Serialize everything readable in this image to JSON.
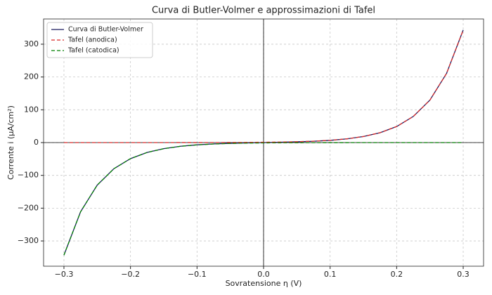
{
  "chart_data": {
    "type": "line",
    "title": "Curva di Butler-Volmer e approssimazioni di Tafel",
    "x_label": "Sovratensione η (V)",
    "y_label": "Corrente i (μA/cm²)",
    "x": [
      -0.3,
      -0.275,
      -0.25,
      -0.225,
      -0.2,
      -0.175,
      -0.15,
      -0.125,
      -0.1,
      -0.075,
      -0.05,
      -0.025,
      0,
      0.025,
      0.05,
      0.075,
      0.1,
      0.125,
      0.15,
      0.175,
      0.2,
      0.225,
      0.25,
      0.275,
      0.3
    ],
    "series": [
      {
        "name": "Curva di Butler-Volmer",
        "color": "#1a1a5e",
        "linestyle": "solid",
        "values": [
          -343.2,
          -211.0,
          -129.7,
          -79.72,
          -48.99,
          -30.1,
          -18.47,
          -11.3,
          -6.858,
          -4.072,
          -2.268,
          -1.012,
          0,
          1.012,
          2.268,
          4.072,
          6.858,
          11.3,
          18.47,
          30.1,
          48.99,
          79.72,
          129.7,
          211.0,
          343.2
        ]
      },
      {
        "name": "Tafel (anodica)",
        "color": "#d62728",
        "linestyle": "dashed",
        "values": [
          0.003,
          0.005,
          0.008,
          0.013,
          0.02,
          0.033,
          0.054,
          0.088,
          0.143,
          0.232,
          0.378,
          0.615,
          1,
          1.627,
          2.646,
          4.304,
          7.001,
          11.39,
          18.52,
          30.13,
          49.01,
          79.73,
          129.7,
          211.0,
          343.2
        ]
      },
      {
        "name": "Tafel (catodica)",
        "color": "#008000",
        "linestyle": "dashed",
        "values": [
          -343.2,
          -211.0,
          -129.7,
          -79.73,
          -49.01,
          -30.13,
          -18.52,
          -11.39,
          -7.001,
          -4.304,
          -2.646,
          -1.627,
          -1,
          -0.615,
          -0.378,
          -0.232,
          -0.143,
          -0.088,
          -0.054,
          -0.033,
          -0.02,
          -0.013,
          -0.008,
          -0.005,
          -0.003
        ]
      }
    ],
    "xlim": [
      -0.3306,
      0.3306
    ],
    "ylim": [
      -377,
      377
    ],
    "xticks": [
      {
        "value": -0.3,
        "label": "−0.3"
      },
      {
        "value": -0.2,
        "label": "−0.2"
      },
      {
        "value": -0.1,
        "label": "−0.1"
      },
      {
        "value": 0,
        "label": "0.0"
      },
      0.1,
      0.2,
      0.3
    ],
    "yticks": [
      {
        "value": -300,
        "label": "−300"
      },
      {
        "value": -200,
        "label": "−200"
      },
      {
        "value": -100,
        "label": "−100"
      },
      0,
      100,
      200,
      300
    ],
    "grid": true,
    "legend": "upper-left"
  }
}
